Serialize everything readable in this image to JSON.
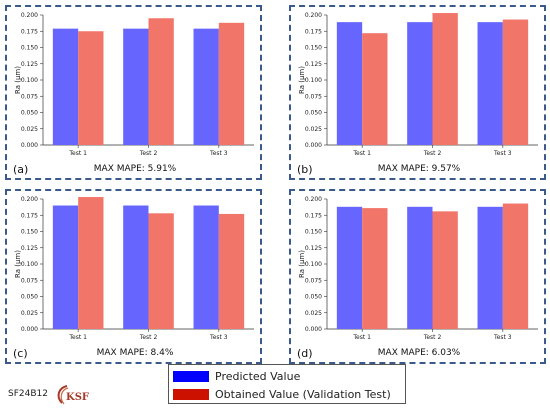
{
  "legend": {
    "items": [
      {
        "label": "Predicted Value",
        "color": "#0000ff"
      },
      {
        "label": "Obtained Value (Validation Test)",
        "color": "#cc1100"
      }
    ]
  },
  "footer": {
    "figure_id": "SF24B12",
    "logo_text": "KSF"
  },
  "colors": {
    "predicted": "#6666ff",
    "obtained": "#f2756a",
    "border": "#3b5a8c"
  },
  "chart_data": [
    {
      "type": "bar",
      "panel_label": "(a)",
      "caption": "MAX MAPE: 5.91%",
      "ylabel": "Ra (μm)",
      "ylim": [
        0,
        0.2
      ],
      "yticks": [
        "0.000",
        "0.025",
        "0.050",
        "0.075",
        "0.100",
        "0.125",
        "0.150",
        "0.175",
        "0.200"
      ],
      "categories": [
        "Test 1",
        "Test 2",
        "Test 3"
      ],
      "series": [
        {
          "values": [
            0.179,
            0.179,
            0.179
          ]
        },
        {
          "values": [
            0.175,
            0.195,
            0.188
          ]
        }
      ]
    },
    {
      "type": "bar",
      "panel_label": "(b)",
      "caption": "MAX MAPE: 9.57%",
      "ylabel": "Ra (μm)",
      "ylim": [
        0,
        0.2
      ],
      "yticks": [
        "0.000",
        "0.025",
        "0.050",
        "0.075",
        "0.100",
        "0.125",
        "0.150",
        "0.175",
        "0.200"
      ],
      "categories": [
        "Test 1",
        "Test 2",
        "Test 3"
      ],
      "series": [
        {
          "values": [
            0.189,
            0.189,
            0.189
          ]
        },
        {
          "values": [
            0.172,
            0.203,
            0.193
          ]
        }
      ]
    },
    {
      "type": "bar",
      "panel_label": "(c)",
      "caption": "MAX MAPE: 8.4%",
      "ylabel": "Ra (μm)",
      "ylim": [
        0,
        0.2
      ],
      "yticks": [
        "0.000",
        "0.025",
        "0.050",
        "0.075",
        "0.100",
        "0.125",
        "0.150",
        "0.175",
        "0.200"
      ],
      "categories": [
        "Test 1",
        "Test 2",
        "Test 3"
      ],
      "series": [
        {
          "values": [
            0.19,
            0.19,
            0.19
          ]
        },
        {
          "values": [
            0.203,
            0.178,
            0.177
          ]
        }
      ]
    },
    {
      "type": "bar",
      "panel_label": "(d)",
      "caption": "MAX MAPE: 6.03%",
      "ylabel": "Ra (μm)",
      "ylim": [
        0,
        0.2
      ],
      "yticks": [
        "0.000",
        "0.025",
        "0.050",
        "0.075",
        "0.100",
        "0.125",
        "0.150",
        "0.175",
        "0.200"
      ],
      "categories": [
        "Test 1",
        "Test 2",
        "Test 3"
      ],
      "series": [
        {
          "values": [
            0.188,
            0.188,
            0.188
          ]
        },
        {
          "values": [
            0.186,
            0.181,
            0.193
          ]
        }
      ]
    }
  ]
}
